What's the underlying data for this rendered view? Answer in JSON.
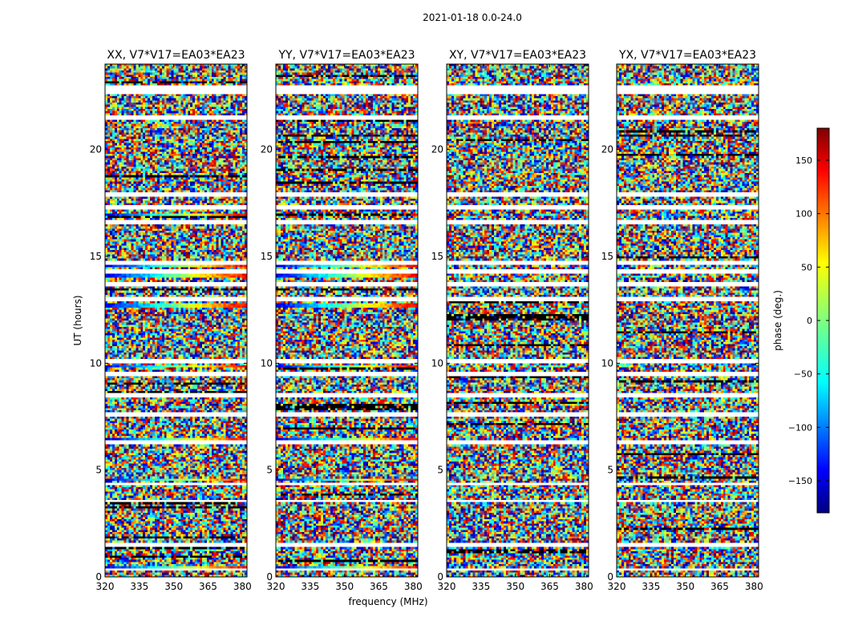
{
  "figure": {
    "suptitle": "2021-01-18 0.0-24.0"
  },
  "chart_data": {
    "type": "heatmap",
    "xlabel": "frequency (MHz)",
    "ylabel": "UT (hours)",
    "xlim": [
      320,
      382
    ],
    "ylim": [
      0,
      24
    ],
    "xticks": [
      320,
      335,
      350,
      365,
      380
    ],
    "yticks": [
      0,
      5,
      10,
      15,
      20
    ],
    "panels": [
      {
        "title": "XX, V7*V17=EA03*EA23",
        "pol": "XX"
      },
      {
        "title": "YY, V7*V17=EA03*EA23",
        "pol": "YY"
      },
      {
        "title": "XY, V7*V17=EA03*EA23",
        "pol": "XY"
      },
      {
        "title": "YX, V7*V17=EA03*EA23",
        "pol": "YX"
      }
    ],
    "colorbar": {
      "label": "phase (deg.)",
      "range": [
        -180,
        180
      ],
      "ticks": [
        -150,
        -100,
        -50,
        0,
        50,
        100,
        150
      ],
      "colormap": "jet"
    },
    "flagged_ut_hours": [
      0.35,
      1.5,
      3.55,
      4.35,
      6.3,
      7.6,
      8.5,
      9.5,
      10.1,
      13.0,
      13.7,
      14.3,
      14.7,
      16.6,
      17.3,
      17.9,
      21.5,
      22.7,
      22.9
    ],
    "coherent_ut_hours": [
      0.45,
      4.55,
      6.45,
      9.85,
      12.7,
      14.1,
      14.55,
      16.95
    ]
  }
}
